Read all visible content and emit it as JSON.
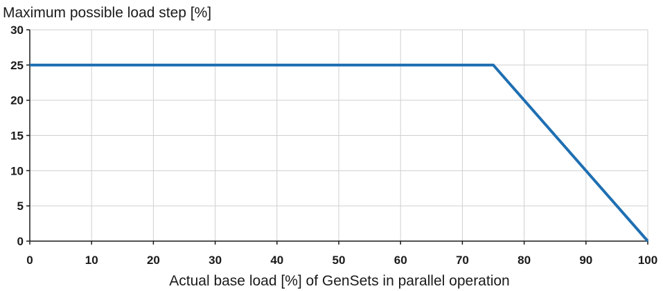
{
  "chart_data": {
    "type": "line",
    "title": "",
    "ylabel": "Maximum possible load step [%]",
    "xlabel": "Actual base load [%] of GenSets in parallel operation",
    "xlim": [
      0,
      100
    ],
    "ylim": [
      0,
      30
    ],
    "x_ticks": [
      "0",
      "10",
      "20",
      "30",
      "40",
      "50",
      "60",
      "70",
      "80",
      "90",
      "100"
    ],
    "y_ticks": [
      "0",
      "5",
      "10",
      "15",
      "20",
      "25",
      "30"
    ],
    "grid": true,
    "legend": "none",
    "series": [
      {
        "color": "#1f6fb2",
        "x": [
          0,
          75,
          100
        ],
        "y": [
          25,
          25,
          0
        ]
      }
    ]
  }
}
